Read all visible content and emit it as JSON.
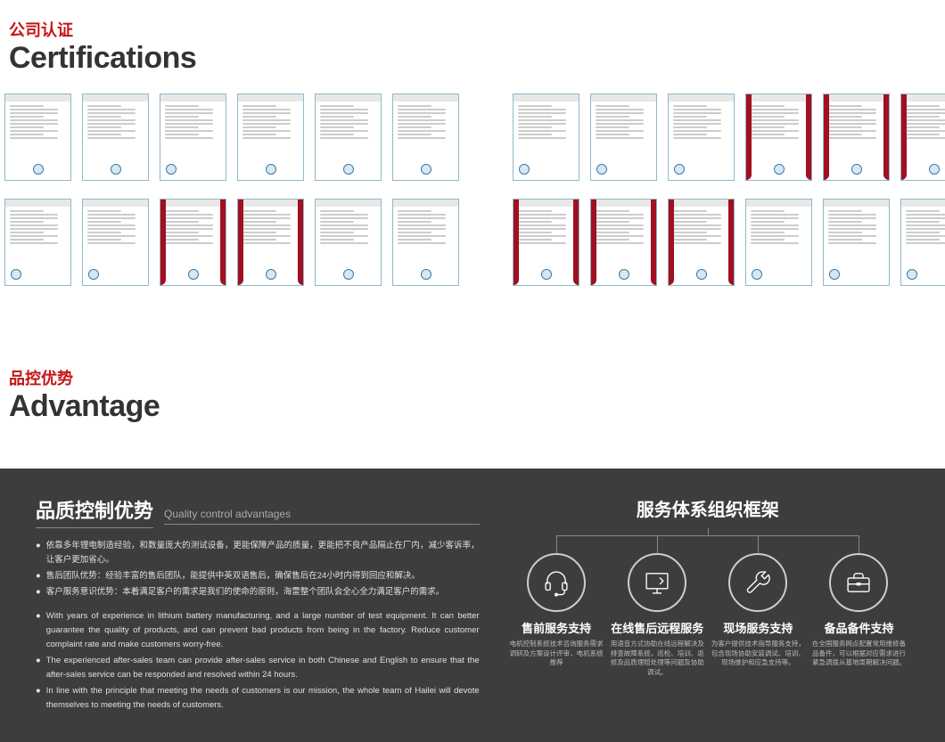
{
  "colors": {
    "accent": "#c41414",
    "text_dark": "#333333",
    "dark_bg": "#3d3d3d",
    "cert_border": "#8fb8c8",
    "stripe": "#a01020",
    "seal_border": "#3a7aa8"
  },
  "certifications": {
    "header_cn": "公司认证",
    "header_en": "Certifications",
    "left_rows": [
      [
        {
          "style": "plain",
          "seal": "center"
        },
        {
          "style": "plain",
          "seal": "center"
        },
        {
          "style": "plain",
          "seal": "left"
        },
        {
          "style": "plain",
          "seal": "center"
        },
        {
          "style": "plain",
          "seal": "center"
        },
        {
          "style": "plain",
          "seal": "center"
        }
      ],
      [
        {
          "style": "plain",
          "seal": "left"
        },
        {
          "style": "plain",
          "seal": "left"
        },
        {
          "style": "stripes",
          "seal": "center"
        },
        {
          "style": "stripes",
          "seal": "center"
        },
        {
          "style": "plain",
          "seal": "center"
        },
        {
          "style": "plain",
          "seal": "center"
        }
      ]
    ],
    "right_rows": [
      [
        {
          "style": "plain",
          "seal": "left"
        },
        {
          "style": "plain",
          "seal": "left"
        },
        {
          "style": "plain",
          "seal": "left"
        },
        {
          "style": "stripes",
          "seal": "center"
        },
        {
          "style": "stripes",
          "seal": "center"
        },
        {
          "style": "stripes",
          "seal": "center"
        }
      ],
      [
        {
          "style": "stripes",
          "seal": "center"
        },
        {
          "style": "stripes",
          "seal": "center"
        },
        {
          "style": "stripes",
          "seal": "center"
        },
        {
          "style": "plain",
          "seal": "left"
        },
        {
          "style": "plain",
          "seal": "left"
        },
        {
          "style": "plain",
          "seal": "left"
        }
      ]
    ]
  },
  "advantage": {
    "header_cn": "品控优势",
    "header_en": "Advantage",
    "qc_title_cn": "品质控制优势",
    "qc_title_en": "Quality control advantages",
    "bullets_cn": [
      "依靠多年锂电制造经验，和数量庞大的测试设备，更能保障产品的质量，更能把不良产品隔止在厂内，减少客诉率，让客户更加省心。",
      "售后团队优势：经验丰富的售后团队，能提供中英双语售后，确保售后在24小时内得到回应和解决。",
      "客户服务意识优势：本着满足客户的需求是我们的使命的原则，海雷整个团队会全心全力满足客户的需求。"
    ],
    "bullets_en": [
      "With years of experience in lithium battery manufacturing, and a large number of test equipment. It can better guarantee the quality of products, and can prevent bad products from being in the factory. Reduce customer complaint rate and make customers worry-free.",
      "The experienced after-sales team can provide after-sales service in both Chinese and English to ensure that the after-sales service can be responded and resolved within 24 hours.",
      "In line with the principle that meeting the needs of customers is our mission, the whole team of Hailei will devote themselves to meeting the needs of customers."
    ]
  },
  "service": {
    "title": "服务体系组织框架",
    "items": [
      {
        "icon": "headset",
        "name": "售前服务支持",
        "desc": "电机控制系统技术咨询服务需求调研及方案设计评审，电机系统推荐"
      },
      {
        "icon": "monitor",
        "name": "在线售后远程服务",
        "desc": "用语音方式协助在线远程解决及排查故障系统，巡检、培训、返修及品质理赔处理等问题及协助调试。"
      },
      {
        "icon": "wrench",
        "name": "现场服务支持",
        "desc": "为客户提供技术指导服务支持，包含现场协助安装调试、培训、现场维护和应急支持等。"
      },
      {
        "icon": "toolbox",
        "name": "备品备件支持",
        "desc": "在全国服务网点配置常用维修备品备件，可以根据对应需求进行紧急调拨从基地周期解决问题。"
      }
    ]
  }
}
